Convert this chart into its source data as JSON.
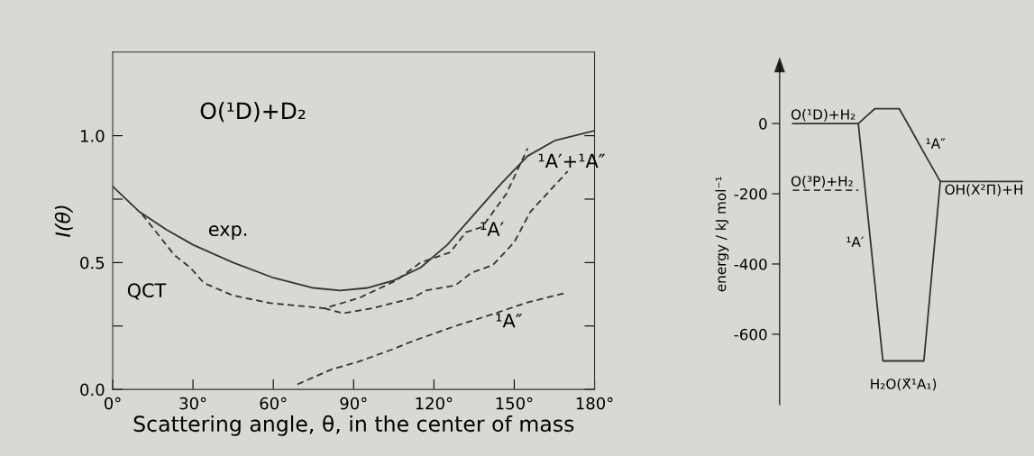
{
  "chart_data": [
    {
      "type": "line",
      "xlabel": "Scattering angle, θ, in the center of mass",
      "ylabel": "I(θ)",
      "xlim": [
        0,
        180
      ],
      "ylim": [
        0,
        1.33
      ],
      "xticks": [
        {
          "value": 0,
          "label": "0°"
        },
        {
          "value": 30,
          "label": "30°"
        },
        {
          "value": 60,
          "label": "60°"
        },
        {
          "value": 90,
          "label": "90°"
        },
        {
          "value": 120,
          "label": "120°"
        },
        {
          "value": 150,
          "label": "150°"
        },
        {
          "value": 180,
          "label": "180°"
        }
      ],
      "yticks": [
        {
          "value": 0,
          "label": "0.0"
        },
        {
          "value": 0.25,
          "label": null
        },
        {
          "value": 0.5,
          "label": "0.5"
        },
        {
          "value": 0.75,
          "label": null
        },
        {
          "value": 1.0,
          "label": "1.0"
        }
      ],
      "grid": false,
      "legend": false,
      "series": [
        {
          "color": "#333333",
          "line_style": "solid",
          "x": [
            0,
            10,
            20,
            30,
            45,
            60,
            75,
            85,
            95,
            105,
            115,
            125,
            135,
            145,
            155,
            165,
            180
          ],
          "values": [
            0.8,
            0.7,
            0.63,
            0.57,
            0.5,
            0.44,
            0.4,
            0.39,
            0.4,
            0.43,
            0.48,
            0.57,
            0.69,
            0.81,
            0.92,
            0.98,
            1.02
          ]
        },
        {
          "color": "#333333",
          "line_style": "dashed",
          "x": [
            11,
            23,
            29,
            34,
            45,
            59,
            79,
            92,
            106,
            115,
            126,
            132,
            138,
            147,
            155
          ],
          "values": [
            0.69,
            0.53,
            0.48,
            0.42,
            0.37,
            0.34,
            0.32,
            0.36,
            0.43,
            0.5,
            0.54,
            0.62,
            0.64,
            0.77,
            0.95
          ]
        },
        {
          "color": "#333333",
          "line_style": "dashed",
          "x": [
            79,
            86,
            97,
            112,
            117,
            128,
            134,
            142,
            150,
            156,
            170
          ],
          "values": [
            0.32,
            0.3,
            0.32,
            0.36,
            0.39,
            0.41,
            0.46,
            0.49,
            0.58,
            0.7,
            0.86
          ]
        },
        {
          "color": "#333333",
          "line_style": "dashed",
          "x": [
            69,
            82,
            92,
            105,
            112,
            128,
            143,
            154,
            169
          ],
          "values": [
            0.02,
            0.08,
            0.11,
            0.16,
            0.19,
            0.25,
            0.3,
            0.34,
            0.38
          ]
        }
      ],
      "annotations": [
        "O(¹D)+D₂",
        {
          "text": "exp.",
          "x": 30,
          "y": 0.57
        },
        {
          "text": "QCT",
          "x": 34,
          "y": 0.42
        },
        {
          "text": "¹A′+¹A″",
          "x": 155,
          "y": 0.95
        },
        {
          "text": "¹A′",
          "x": 150,
          "y": 0.58
        },
        {
          "text": "¹A″",
          "x": 154,
          "y": 0.34
        }
      ]
    },
    {
      "type": "line",
      "ylabel": "energy / kJ mol⁻¹",
      "tick_labels": "y",
      "categories": [
        null,
        null,
        null,
        null,
        null,
        null,
        null,
        null,
        null,
        null,
        null,
        null,
        null,
        null,
        null,
        null,
        null,
        null,
        null,
        null,
        null,
        null,
        null,
        null,
        null,
        null,
        null,
        null,
        null
      ],
      "ylim": [
        -800,
        170
      ],
      "yticks": [
        0,
        -200,
        -400,
        -600
      ],
      "grid": false,
      "legend": false,
      "series": [
        {
          "color": "#333333",
          "line_style": "solid",
          "values": [
            0,
            0,
            0,
            0,
            0,
            0,
            0,
            0,
            0,
            21,
            42,
            42,
            42,
            42,
            1,
            -41,
            -83,
            -124,
            -165,
            -165,
            -165,
            -165,
            -165,
            -165,
            -165,
            -165,
            -165,
            -165,
            -165
          ]
        },
        {
          "color": "#333333",
          "line_style": "solid",
          "values": [
            null,
            null,
            null,
            null,
            null,
            null,
            null,
            null,
            0,
            -225,
            -451,
            -676,
            -676,
            -676,
            -676,
            -676,
            -676,
            -420,
            -165,
            null,
            null,
            null,
            null,
            null,
            null,
            null,
            null,
            null,
            null
          ]
        },
        {
          "color": "#333333",
          "line_style": "dashed",
          "values": [
            -190,
            -190,
            -190,
            -190,
            -190,
            -190,
            -190,
            -190,
            -190,
            null,
            null,
            null,
            null,
            null,
            null,
            null,
            null,
            null,
            null,
            null,
            null,
            null,
            null,
            null,
            null,
            null,
            null,
            null,
            null
          ]
        }
      ],
      "annotations": [
        {
          "text": "O(¹D)+H₂",
          "y": 0
        },
        {
          "text": "O(³P)+H₂",
          "y": -190
        },
        "¹A″",
        "¹A′",
        {
          "text": "OH(X²Π)+H",
          "y": -165
        },
        {
          "text": "H₂O(X̃¹A₁)",
          "y": -676
        }
      ]
    }
  ]
}
